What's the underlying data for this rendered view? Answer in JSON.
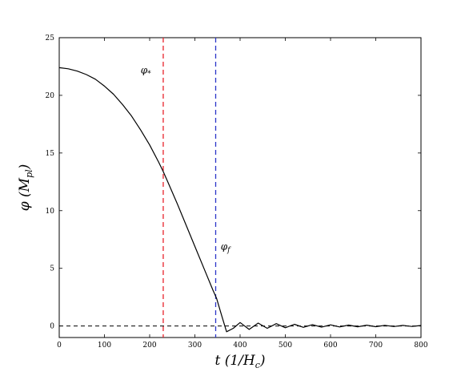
{
  "chart_data": {
    "type": "line",
    "xlabel": "t (1/H_c)",
    "ylabel": "φ (M_pl)",
    "xlim": [
      0,
      800
    ],
    "ylim": [
      -1,
      25
    ],
    "x_ticks": [
      0,
      100,
      200,
      300,
      400,
      500,
      600,
      700,
      800
    ],
    "y_ticks": [
      0,
      5,
      10,
      15,
      20,
      25
    ],
    "grid": false,
    "series": [
      {
        "color": "#000000",
        "style": "solid",
        "x": [
          0,
          20,
          40,
          60,
          80,
          100,
          120,
          140,
          160,
          180,
          200,
          220,
          230,
          240,
          260,
          280,
          300,
          320,
          340,
          348,
          360,
          370,
          385,
          400,
          420,
          440,
          460,
          480,
          500,
          520,
          540,
          560,
          580,
          600,
          620,
          640,
          660,
          680,
          700,
          720,
          740,
          760,
          780,
          800
        ],
        "y": [
          22.4,
          22.3,
          22.1,
          21.8,
          21.4,
          20.8,
          20.1,
          19.2,
          18.2,
          17.0,
          15.7,
          14.2,
          13.4,
          12.5,
          10.7,
          8.8,
          6.9,
          5.0,
          3.1,
          2.4,
          0.8,
          -0.5,
          -0.2,
          0.3,
          -0.3,
          0.25,
          -0.2,
          0.2,
          -0.15,
          0.15,
          -0.12,
          0.12,
          -0.1,
          0.1,
          -0.08,
          0.08,
          -0.07,
          0.07,
          -0.06,
          0.06,
          -0.05,
          0.05,
          -0.04,
          0.04
        ]
      }
    ],
    "reference_lines": [
      {
        "orientation": "vertical",
        "value": 230,
        "color": "#e8222a",
        "style": "dashed",
        "label": "φ*"
      },
      {
        "orientation": "vertical",
        "value": 346,
        "color": "#2a34c8",
        "style": "dashed",
        "label": "φf"
      },
      {
        "orientation": "horizontal",
        "value": 0,
        "color": "#000000",
        "style": "dashed"
      }
    ],
    "annotations": [
      {
        "text_main": "φ",
        "text_sub": "*",
        "x": 180,
        "y": 21.9
      },
      {
        "text_main": "φ",
        "text_sub": "f",
        "x": 357,
        "y": 6.6
      }
    ]
  }
}
